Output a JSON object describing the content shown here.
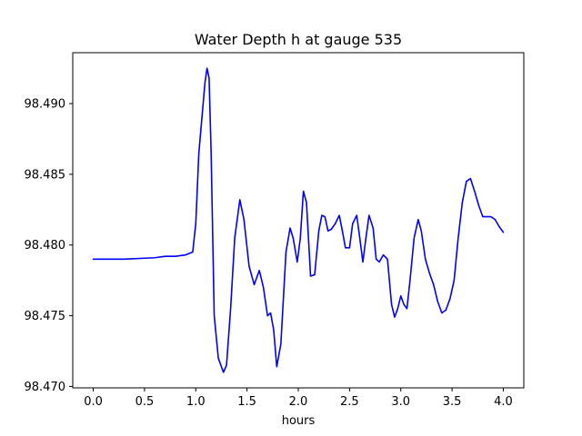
{
  "chart_data": {
    "type": "line",
    "title": "Water Depth h at gauge 535",
    "xlabel": "hours",
    "ylabel": "",
    "xlim": [
      -0.2,
      4.2
    ],
    "ylim": [
      98.4699,
      98.4936
    ],
    "xticks": [
      0.0,
      0.5,
      1.0,
      1.5,
      2.0,
      2.5,
      3.0,
      3.5,
      4.0
    ],
    "xtick_labels": [
      "0.0",
      "0.5",
      "1.0",
      "1.5",
      "2.0",
      "2.5",
      "3.0",
      "3.5",
      "4.0"
    ],
    "yticks": [
      98.47,
      98.475,
      98.48,
      98.485,
      98.49
    ],
    "ytick_labels": [
      "98.470",
      "98.475",
      "98.480",
      "98.485",
      "98.490"
    ],
    "grid": false,
    "series": [
      {
        "color": "#0000ff",
        "x": [
          0.0,
          0.3,
          0.6,
          0.7,
          0.8,
          0.9,
          0.97,
          1.0,
          1.03,
          1.06,
          1.09,
          1.11,
          1.13,
          1.15,
          1.18,
          1.22,
          1.27,
          1.3,
          1.34,
          1.38,
          1.43,
          1.47,
          1.52,
          1.57,
          1.62,
          1.66,
          1.7,
          1.73,
          1.76,
          1.79,
          1.83,
          1.88,
          1.92,
          1.95,
          1.99,
          2.02,
          2.05,
          2.08,
          2.12,
          2.16,
          2.2,
          2.23,
          2.26,
          2.29,
          2.32,
          2.36,
          2.4,
          2.43,
          2.46,
          2.5,
          2.53,
          2.57,
          2.6,
          2.63,
          2.66,
          2.69,
          2.73,
          2.76,
          2.79,
          2.83,
          2.87,
          2.91,
          2.94,
          2.97,
          3.0,
          3.03,
          3.06,
          3.09,
          3.13,
          3.17,
          3.2,
          3.24,
          3.28,
          3.32,
          3.36,
          3.4,
          3.44,
          3.48,
          3.52,
          3.56,
          3.6,
          3.64,
          3.68,
          3.72,
          3.76,
          3.8,
          3.84,
          3.88,
          3.92,
          3.96,
          4.0
        ],
        "y": [
          98.479,
          98.479,
          98.4791,
          98.4792,
          98.4792,
          98.4793,
          98.4795,
          98.4815,
          98.4865,
          98.489,
          98.4915,
          98.4925,
          98.4918,
          98.4865,
          98.475,
          98.472,
          98.471,
          98.4715,
          98.4755,
          98.4805,
          98.4832,
          98.4818,
          98.4785,
          98.4772,
          98.4782,
          98.477,
          98.475,
          98.4752,
          98.474,
          98.4714,
          98.473,
          98.4795,
          98.4812,
          98.4805,
          98.4788,
          98.4805,
          98.4838,
          98.483,
          98.4778,
          98.4779,
          98.481,
          98.4821,
          98.482,
          98.481,
          98.4811,
          98.4815,
          98.4821,
          98.481,
          98.4798,
          98.4798,
          98.4815,
          98.4821,
          98.4805,
          98.4788,
          98.4805,
          98.4821,
          98.4812,
          98.479,
          98.4788,
          98.4793,
          98.479,
          98.4758,
          98.4749,
          98.4755,
          98.4764,
          98.4758,
          98.4755,
          98.4775,
          98.4805,
          98.4818,
          98.481,
          98.479,
          98.478,
          98.4772,
          98.476,
          98.4752,
          98.4754,
          98.4762,
          98.4775,
          98.4805,
          98.483,
          98.4845,
          98.4847,
          98.4838,
          98.4828,
          98.482,
          98.482,
          98.482,
          98.4818,
          98.4813,
          98.4809
        ]
      }
    ]
  }
}
